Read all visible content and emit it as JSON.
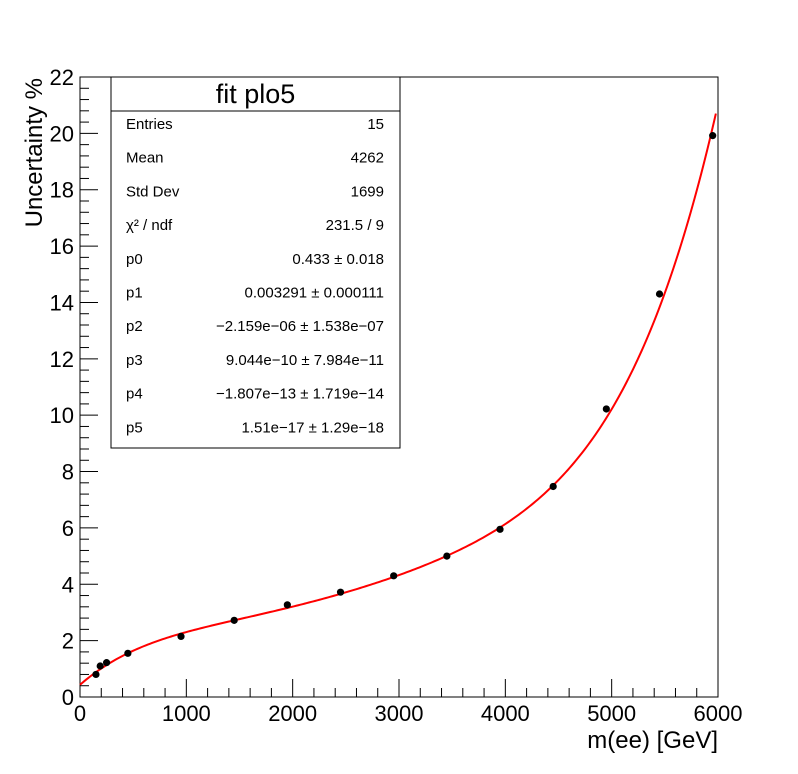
{
  "chart_data": {
    "type": "scatter",
    "xlabel": "m(ee) [GeV]",
    "ylabel": "Uncertainty %",
    "xlim": [
      0,
      6000
    ],
    "ylim": [
      0,
      22
    ],
    "x_ticks": [
      "0",
      "1000",
      "2000",
      "3000",
      "4000",
      "5000",
      "6000"
    ],
    "y_ticks": [
      "0",
      "2",
      "4",
      "6",
      "8",
      "10",
      "12",
      "14",
      "16",
      "18",
      "20",
      "22"
    ],
    "series": [
      {
        "type": "scatter",
        "color": "#000000",
        "points": [
          {
            "x": 150,
            "y": 0.8
          },
          {
            "x": 190,
            "y": 1.1
          },
          {
            "x": 250,
            "y": 1.22
          },
          {
            "x": 450,
            "y": 1.55
          },
          {
            "x": 950,
            "y": 2.15
          },
          {
            "x": 1450,
            "y": 2.72
          },
          {
            "x": 1950,
            "y": 3.27
          },
          {
            "x": 2450,
            "y": 3.72
          },
          {
            "x": 2950,
            "y": 4.3
          },
          {
            "x": 3450,
            "y": 5.0
          },
          {
            "x": 3950,
            "y": 5.95
          },
          {
            "x": 4450,
            "y": 7.47
          },
          {
            "x": 4950,
            "y": 10.22
          },
          {
            "x": 5450,
            "y": 14.3
          },
          {
            "x": 5950,
            "y": 19.92
          }
        ]
      },
      {
        "type": "line",
        "color": "#ff0000",
        "fit": {
          "polynomial": "pol5",
          "x_range": [
            0,
            5980
          ],
          "coefficients": [
            0.433,
            0.003291,
            -2.159e-06,
            9.044e-10,
            -1.807e-13,
            1.51e-17
          ]
        }
      }
    ],
    "stats_box": {
      "title": "fit plo5",
      "rows": [
        {
          "label": "Entries",
          "value": "15"
        },
        {
          "label": "Mean",
          "value": "4262"
        },
        {
          "label": "Std Dev",
          "value": "1699"
        },
        {
          "label": "χ² / ndf",
          "value": "231.5 / 9"
        },
        {
          "label": "p0",
          "value": "0.433 ± 0.018"
        },
        {
          "label": "p1",
          "value": "0.003291 ± 0.000111"
        },
        {
          "label": "p2",
          "value": "−2.159e−06 ± 1.538e−07"
        },
        {
          "label": "p3",
          "value": "9.044e−10 ± 7.984e−11"
        },
        {
          "label": "p4",
          "value": "−1.807e−13 ± 1.719e−14"
        },
        {
          "label": "p5",
          "value": "1.51e−17 ± 1.29e−18"
        }
      ]
    },
    "grid": false,
    "legend": "top-left"
  }
}
